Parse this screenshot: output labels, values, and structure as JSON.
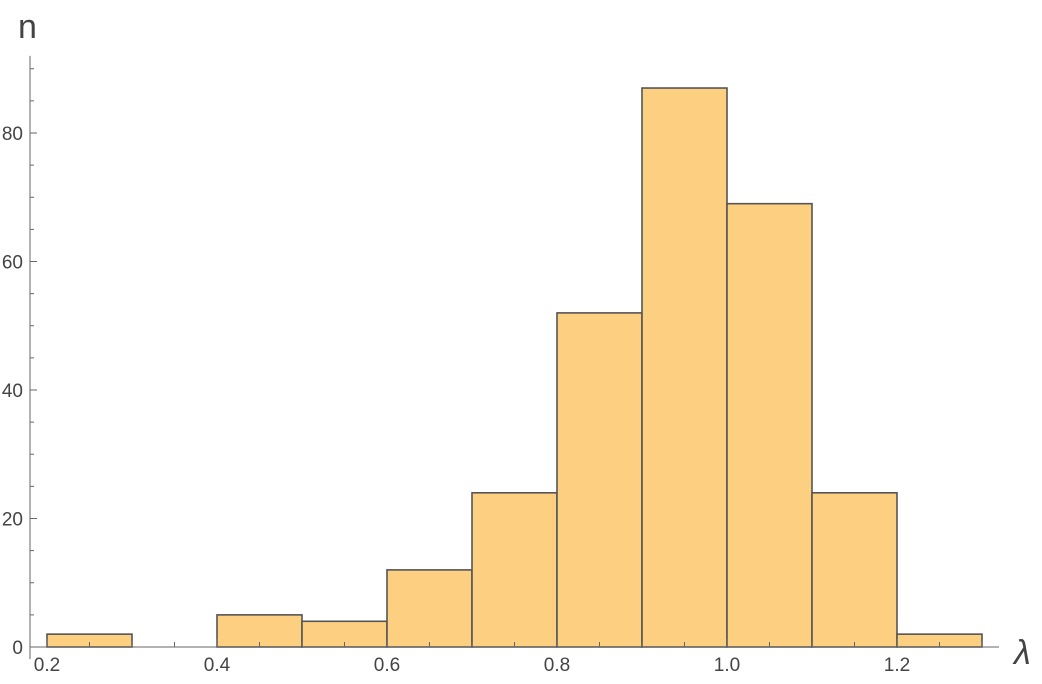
{
  "chart_data": {
    "type": "bar",
    "subtype": "histogram",
    "title": "",
    "xlabel": "λ",
    "ylabel": "n",
    "bins": [
      {
        "from": 0.2,
        "to": 0.3,
        "count": 2
      },
      {
        "from": 0.4,
        "to": 0.5,
        "count": 5
      },
      {
        "from": 0.5,
        "to": 0.6,
        "count": 4
      },
      {
        "from": 0.6,
        "to": 0.7,
        "count": 12
      },
      {
        "from": 0.7,
        "to": 0.8,
        "count": 24
      },
      {
        "from": 0.8,
        "to": 0.9,
        "count": 52
      },
      {
        "from": 0.9,
        "to": 1.0,
        "count": 87
      },
      {
        "from": 1.0,
        "to": 1.1,
        "count": 69
      },
      {
        "from": 1.1,
        "to": 1.2,
        "count": 24
      },
      {
        "from": 1.2,
        "to": 1.3,
        "count": 2
      }
    ],
    "xlim": [
      0.18,
      1.32
    ],
    "ylim": [
      0,
      92
    ],
    "xticks": [
      "0.2",
      "0.4",
      "0.6",
      "0.8",
      "1.0",
      "1.2"
    ],
    "yticks": [
      "0",
      "20",
      "40",
      "60",
      "80"
    ],
    "grid": false,
    "colors": {
      "bar_fill": "#FDD081",
      "bar_edge": "#555555",
      "axis": "#666666"
    }
  }
}
